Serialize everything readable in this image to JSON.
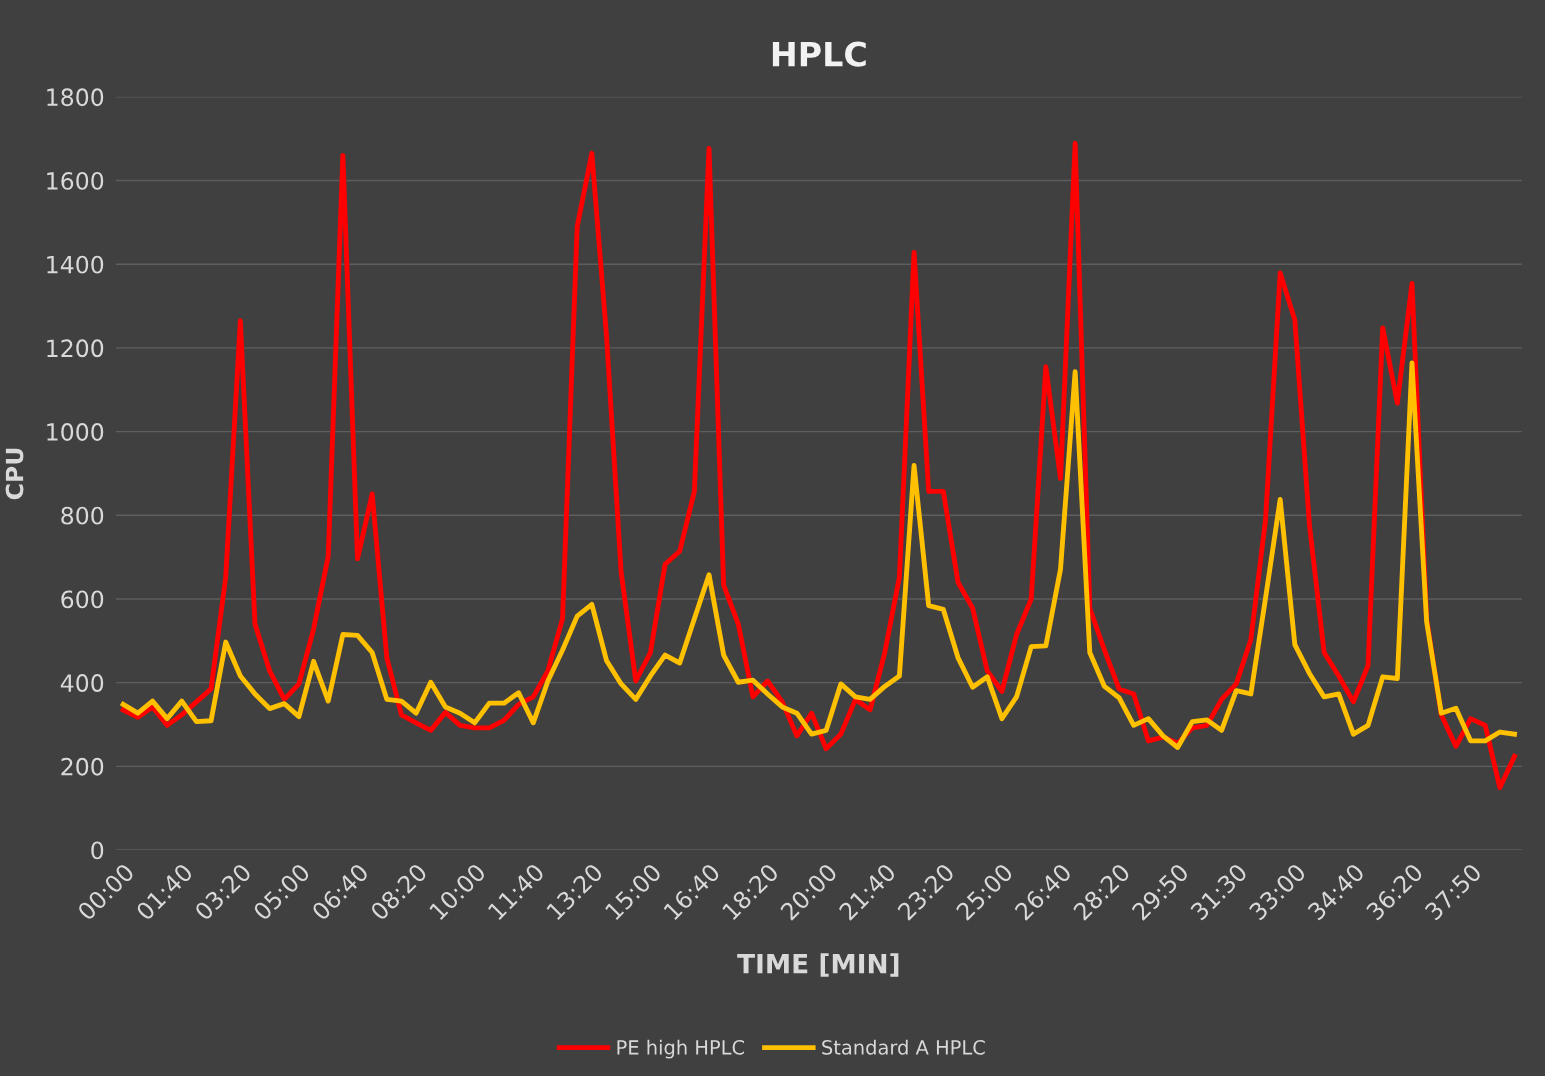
{
  "chart_data": {
    "type": "line",
    "title": "HPLC",
    "xlabel": "TIME [MIN]",
    "ylabel": "CPU",
    "categories": [
      "00:00",
      null,
      null,
      null,
      "01:40",
      null,
      null,
      null,
      "03:20",
      null,
      null,
      null,
      "05:00",
      null,
      null,
      null,
      "06:40",
      null,
      null,
      null,
      "08:20",
      null,
      null,
      null,
      "10:00",
      null,
      null,
      null,
      "11:40",
      null,
      null,
      null,
      "13:20",
      null,
      null,
      null,
      "15:00",
      null,
      null,
      null,
      "16:40",
      null,
      null,
      null,
      "18:20",
      null,
      null,
      null,
      "20:00",
      null,
      null,
      null,
      "21:40",
      null,
      null,
      null,
      "23:20",
      null,
      null,
      null,
      "25:00",
      null,
      null,
      null,
      "26:40",
      null,
      null,
      null,
      "28:20",
      null,
      null,
      null,
      "29:50",
      null,
      null,
      null,
      "31:30",
      null,
      null,
      null,
      "33:00",
      null,
      null,
      null,
      "34:40",
      null,
      null,
      null,
      "36:20",
      null,
      null,
      null,
      "37:50",
      null,
      null,
      null
    ],
    "series": [
      {
        "name": "PE high HPLC",
        "color": "#ff0000",
        "values": [
          335,
          317,
          342,
          298,
          323,
          354,
          385,
          652,
          1265,
          540,
          428,
          360,
          397,
          528,
          702,
          1660,
          696,
          851,
          460,
          323,
          304,
          286,
          329,
          298,
          292,
          292,
          310,
          348,
          366,
          428,
          553,
          1490,
          1665,
          1230,
          664,
          404,
          472,
          683,
          714,
          857,
          1677,
          633,
          540,
          366,
          404,
          354,
          273,
          327,
          242,
          277,
          360,
          335,
          472,
          652,
          1428,
          857,
          857,
          640,
          578,
          428,
          379,
          515,
          600,
          1155,
          888,
          1689,
          578,
          478,
          385,
          373,
          261,
          270,
          255,
          292,
          298,
          360,
          397,
          503,
          789,
          1379,
          1267,
          776,
          472,
          416,
          354,
          441,
          1248,
          1068,
          1354,
          553,
          323,
          248,
          314,
          298,
          149,
          224
        ]
      },
      {
        "name": "Standard A HPLC",
        "color": "#ffc000",
        "values": [
          348,
          327,
          356,
          314,
          356,
          307,
          309,
          497,
          416,
          373,
          338,
          350,
          319,
          451,
          356,
          515,
          513,
          472,
          360,
          356,
          327,
          401,
          342,
          327,
          304,
          351,
          351,
          376,
          304,
          404,
          478,
          559,
          587,
          453,
          397,
          360,
          416,
          466,
          447,
          553,
          658,
          466,
          401,
          406,
          373,
          342,
          327,
          277,
          286,
          397,
          366,
          360,
          391,
          416,
          919,
          584,
          575,
          460,
          389,
          414,
          314,
          366,
          486,
          488,
          671,
          1143,
          472,
          391,
          364,
          298,
          314,
          273,
          245,
          307,
          311,
          286,
          381,
          373,
          602,
          838,
          491,
          422,
          366,
          373,
          277,
          298,
          414,
          410,
          1164,
          546,
          327,
          339,
          261,
          261,
          282,
          277
        ]
      }
    ],
    "ylim": [
      0,
      1800
    ],
    "yticks": [
      0,
      200,
      400,
      600,
      800,
      1000,
      1200,
      1400,
      1600,
      1800
    ],
    "grid": "y",
    "legend": "bottom",
    "marker": "none",
    "line_style": "solid"
  }
}
